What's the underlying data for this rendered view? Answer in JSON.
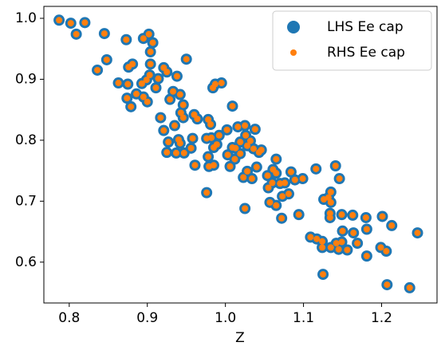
{
  "chart_data": {
    "type": "scatter",
    "xlabel": "Z",
    "x": [
      0.787,
      0.802,
      0.809,
      0.82,
      0.845,
      0.848,
      0.836,
      0.873,
      0.876,
      0.881,
      0.863,
      0.875,
      0.874,
      0.879,
      0.895,
      0.902,
      0.907,
      0.904,
      0.904,
      0.893,
      0.899,
      0.903,
      0.886,
      0.895,
      0.9,
      0.911,
      0.914,
      0.921,
      0.925,
      0.938,
      0.95,
      0.933,
      0.929,
      0.942,
      0.946,
      0.943,
      0.946,
      0.917,
      0.921,
      0.927,
      0.925,
      0.935,
      0.94,
      0.937,
      0.942,
      0.947,
      0.958,
      0.956,
      0.96,
      0.964,
      0.961,
      0.978,
      0.981,
      0.984,
      0.987,
      0.995,
      0.976,
      0.982,
      0.978,
      0.985,
      0.979,
      0.985,
      0.989,
      0.992,
      0.976,
      1.002,
      1.006,
      1.009,
      1.003,
      1.013,
      1.012,
      1.019,
      1.009,
      1.016,
      1.025,
      1.019,
      1.026,
      1.028,
      1.032,
      1.038,
      1.036,
      1.023,
      1.028,
      1.034,
      1.04,
      1.043,
      1.025,
      1.046,
      1.054,
      1.06,
      1.065,
      1.061,
      1.065,
      1.055,
      1.057,
      1.065,
      1.072,
      1.07,
      1.076,
      1.073,
      1.081,
      1.084,
      1.094,
      1.089,
      1.099,
      1.116,
      1.109,
      1.117,
      1.124,
      1.124,
      1.125,
      1.126,
      1.132,
      1.135,
      1.135,
      1.134,
      1.134,
      1.135,
      1.141,
      1.146,
      1.142,
      1.145,
      1.149,
      1.15,
      1.149,
      1.156,
      1.163,
      1.164,
      1.169,
      1.18,
      1.181,
      1.181,
      1.201,
      1.199,
      1.206,
      1.213,
      1.207,
      1.236,
      1.246
    ],
    "series": [
      {
        "name": "LHS Ee cap",
        "color": "#1f77b4",
        "values": [
          0.997,
          0.992,
          0.974,
          0.993,
          0.975,
          0.932,
          0.915,
          0.965,
          0.92,
          0.925,
          0.894,
          0.892,
          0.869,
          0.855,
          0.967,
          0.974,
          0.96,
          0.945,
          0.925,
          0.893,
          0.899,
          0.907,
          0.876,
          0.871,
          0.863,
          0.886,
          0.901,
          0.919,
          0.912,
          0.905,
          0.933,
          0.88,
          0.867,
          0.875,
          0.858,
          0.845,
          0.837,
          0.837,
          0.816,
          0.797,
          0.78,
          0.824,
          0.801,
          0.779,
          0.795,
          0.779,
          0.803,
          0.787,
          0.842,
          0.835,
          0.759,
          0.834,
          0.826,
          0.886,
          0.892,
          0.894,
          0.803,
          0.804,
          0.773,
          0.788,
          0.757,
          0.759,
          0.793,
          0.808,
          0.714,
          0.817,
          0.757,
          0.788,
          0.776,
          0.787,
          0.769,
          0.778,
          0.856,
          0.822,
          0.824,
          0.797,
          0.808,
          0.791,
          0.799,
          0.818,
          0.786,
          0.739,
          0.749,
          0.737,
          0.756,
          0.78,
          0.688,
          0.784,
          0.742,
          0.73,
          0.769,
          0.752,
          0.746,
          0.722,
          0.698,
          0.693,
          0.672,
          0.729,
          0.73,
          0.708,
          0.712,
          0.748,
          0.678,
          0.735,
          0.737,
          0.753,
          0.641,
          0.638,
          0.634,
          0.624,
          0.58,
          0.703,
          0.706,
          0.698,
          0.715,
          0.68,
          0.673,
          0.624,
          0.758,
          0.737,
          0.631,
          0.621,
          0.678,
          0.651,
          0.633,
          0.62,
          0.677,
          0.648,
          0.631,
          0.673,
          0.654,
          0.61,
          0.675,
          0.624,
          0.618,
          0.66,
          0.563,
          0.558,
          0.648
        ]
      },
      {
        "name": "RHS Ee cap",
        "color": "#ff7f0e",
        "values": [
          0.997,
          0.992,
          0.974,
          0.993,
          0.975,
          0.932,
          0.915,
          0.965,
          0.92,
          0.925,
          0.894,
          0.892,
          0.869,
          0.855,
          0.967,
          0.974,
          0.96,
          0.945,
          0.925,
          0.893,
          0.899,
          0.907,
          0.876,
          0.871,
          0.863,
          0.886,
          0.901,
          0.919,
          0.912,
          0.905,
          0.933,
          0.88,
          0.867,
          0.875,
          0.858,
          0.845,
          0.837,
          0.837,
          0.816,
          0.797,
          0.78,
          0.824,
          0.801,
          0.779,
          0.795,
          0.779,
          0.803,
          0.787,
          0.842,
          0.835,
          0.759,
          0.834,
          0.826,
          0.886,
          0.892,
          0.894,
          0.803,
          0.804,
          0.773,
          0.788,
          0.757,
          0.759,
          0.793,
          0.808,
          0.714,
          0.817,
          0.757,
          0.788,
          0.776,
          0.787,
          0.769,
          0.778,
          0.856,
          0.822,
          0.824,
          0.797,
          0.808,
          0.791,
          0.799,
          0.818,
          0.786,
          0.739,
          0.749,
          0.737,
          0.756,
          0.78,
          0.688,
          0.784,
          0.742,
          0.73,
          0.769,
          0.752,
          0.746,
          0.722,
          0.698,
          0.693,
          0.672,
          0.729,
          0.73,
          0.708,
          0.712,
          0.748,
          0.678,
          0.735,
          0.737,
          0.753,
          0.641,
          0.638,
          0.634,
          0.624,
          0.58,
          0.703,
          0.706,
          0.698,
          0.715,
          0.68,
          0.673,
          0.624,
          0.758,
          0.737,
          0.631,
          0.621,
          0.678,
          0.651,
          0.633,
          0.62,
          0.677,
          0.648,
          0.631,
          0.673,
          0.654,
          0.61,
          0.675,
          0.624,
          0.618,
          0.66,
          0.563,
          0.558,
          0.648
        ]
      }
    ],
    "xlim": [
      0.7675,
      1.271
    ],
    "ylim": [
      0.533,
      1.0196
    ],
    "xticks": [
      0.8,
      0.9,
      {
        "value": 1,
        "label": "1.0"
      },
      1.1,
      1.2
    ],
    "yticks": [
      0.6,
      0.7,
      0.8,
      0.9,
      {
        "value": 1,
        "label": "1.0"
      }
    ],
    "legend": "upper right"
  }
}
